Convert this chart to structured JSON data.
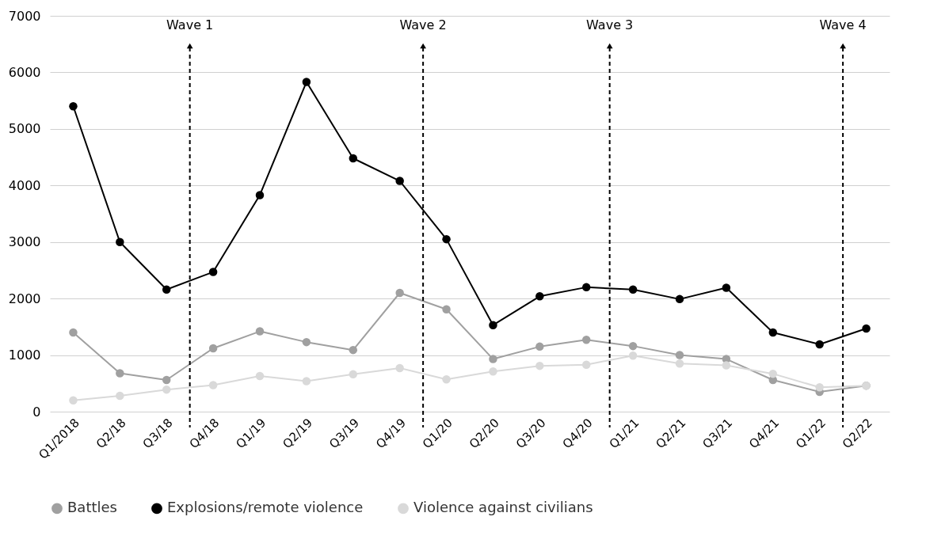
{
  "chart_data": {
    "type": "line",
    "categories": [
      "Q1/2018",
      "Q2/18",
      "Q3/18",
      "Q4/18",
      "Q1/19",
      "Q2/19",
      "Q3/19",
      "Q4/19",
      "Q1/20",
      "Q2/20",
      "Q3/20",
      "Q4/20",
      "Q1/21",
      "Q2/21",
      "Q3/21",
      "Q4/21",
      "Q1/22",
      "Q2/22"
    ],
    "series": [
      {
        "name": "Battles",
        "color": "#a0a0a0",
        "values": [
          1400,
          680,
          560,
          1120,
          1420,
          1230,
          1090,
          2100,
          1810,
          930,
          1150,
          1270,
          1160,
          1000,
          930,
          560,
          350,
          460
        ]
      },
      {
        "name": "Explosions/remote violence",
        "color": "#000000",
        "values": [
          5400,
          3000,
          2160,
          2470,
          3830,
          5830,
          4480,
          4080,
          3050,
          1530,
          2040,
          2200,
          2160,
          1990,
          2190,
          1400,
          1190,
          1470
        ]
      },
      {
        "name": "Violence against civilians",
        "color": "#d9d9d9",
        "values": [
          200,
          280,
          390,
          470,
          630,
          540,
          660,
          770,
          570,
          710,
          810,
          830,
          990,
          850,
          820,
          670,
          430,
          460
        ]
      }
    ],
    "ylim": [
      0,
      7000
    ],
    "yticks": [
      0,
      1000,
      2000,
      3000,
      4000,
      5000,
      6000,
      7000
    ],
    "grid": "y",
    "legend": "bottom",
    "marker": "circle",
    "line_style": "solid",
    "ref_lines": [
      {
        "axis": "x",
        "value": "Q4/18",
        "label": "Wave 1",
        "color": "#000000",
        "line_style": "dashed"
      },
      {
        "axis": "x",
        "value": "Q1/20",
        "label": "Wave 2",
        "color": "#000000",
        "line_style": "dashed"
      },
      {
        "axis": "x",
        "value": "Q1/21",
        "label": "Wave 3",
        "color": "#000000",
        "line_style": "dashed"
      },
      {
        "axis": "x",
        "value": "Q2/22",
        "label": "Wave 4",
        "color": "#000000",
        "line_style": "dashed"
      }
    ]
  }
}
